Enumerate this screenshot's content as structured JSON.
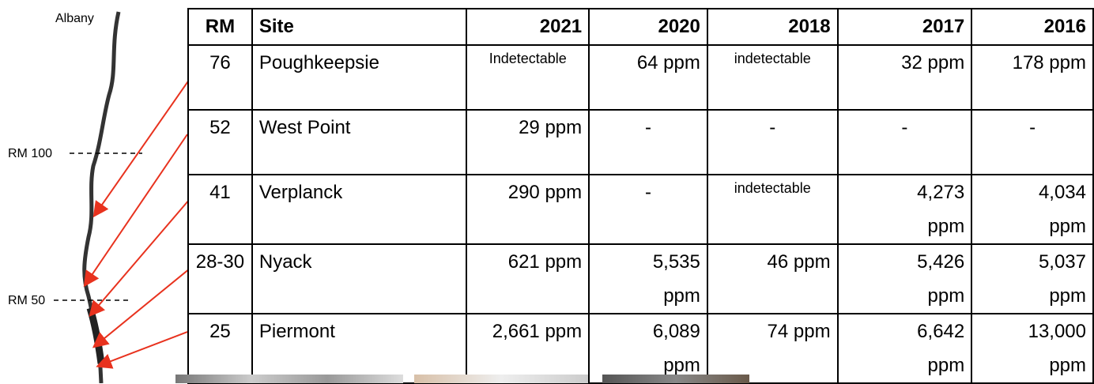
{
  "map": {
    "labels": [
      "Albany",
      "RM 100",
      "RM 50"
    ]
  },
  "table": {
    "header": [
      "RM",
      "Site",
      "2021",
      "2020",
      "2018",
      "2017",
      "2016"
    ],
    "rows": [
      [
        "76",
        "Poughkeepsie",
        "Indetectable",
        "64 ppm",
        "indetectable",
        "32 ppm",
        "178 ppm"
      ],
      [
        "52",
        "West Point",
        "29 ppm",
        "-",
        "-",
        "-",
        "-"
      ],
      [
        "41",
        "Verplanck",
        "290 ppm",
        "-",
        "indetectable",
        "4,273 ppm",
        "4,034 ppm"
      ],
      [
        "28-30",
        "Nyack",
        "621 ppm",
        "5,535 ppm",
        "46 ppm",
        "5,426 ppm",
        "5,037 ppm"
      ],
      [
        "25",
        "Piermont",
        "2,661 ppm",
        "6,089 ppm",
        "74 ppm",
        "6,642 ppm",
        "13,000 ppm"
      ]
    ]
  }
}
